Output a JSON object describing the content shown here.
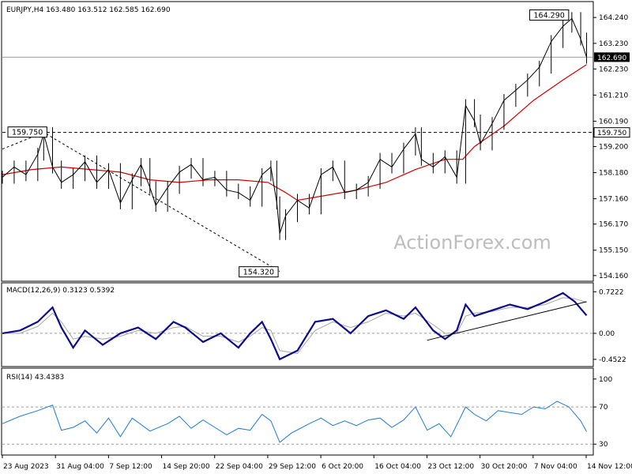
{
  "chart_data": {
    "type": "line",
    "symbol_header": "EURJPY,H4  163.480 163.512 162.585 162.690",
    "watermark": "ActionForex.com",
    "x_labels": [
      "23 Aug 2023",
      "31 Aug 04:00",
      "7 Sep 12:00",
      "14 Sep 20:00",
      "22 Sep 04:00",
      "29 Sep 12:00",
      "6 Oct 20:00",
      "16 Oct 04:00",
      "23 Oct 12:00",
      "30 Oct 20:00",
      "7 Nov 04:00",
      "14 Nov 12:00"
    ],
    "price_panel": {
      "ylim": [
        154.0,
        164.8
      ],
      "ticks": [
        "164.240",
        "163.230",
        "162.230",
        "161.210",
        "160.190",
        "159.200",
        "158.180",
        "157.160",
        "156.170",
        "155.150",
        "154.160"
      ],
      "current_price": "162.690",
      "current_value": 162.69,
      "level_value": 159.75,
      "level_tag": "159.750",
      "callouts": [
        {
          "text": "159.750",
          "x": 0.07,
          "y": 159.75
        },
        {
          "text": "154.320",
          "x": 0.47,
          "y": 154.32
        },
        {
          "text": "164.290",
          "x": 0.965,
          "y": 164.29
        }
      ],
      "price_series": [
        [
          0,
          158.0
        ],
        [
          0.02,
          158.4
        ],
        [
          0.04,
          158.1
        ],
        [
          0.06,
          158.9
        ],
        [
          0.07,
          159.7
        ],
        [
          0.085,
          158.4
        ],
        [
          0.1,
          157.8
        ],
        [
          0.12,
          158.1
        ],
        [
          0.14,
          158.6
        ],
        [
          0.16,
          157.8
        ],
        [
          0.18,
          158.3
        ],
        [
          0.2,
          157.0
        ],
        [
          0.22,
          157.9
        ],
        [
          0.235,
          158.5
        ],
        [
          0.25,
          157.6
        ],
        [
          0.26,
          156.9
        ],
        [
          0.28,
          157.6
        ],
        [
          0.3,
          158.2
        ],
        [
          0.32,
          158.5
        ],
        [
          0.34,
          157.9
        ],
        [
          0.36,
          158.0
        ],
        [
          0.38,
          157.5
        ],
        [
          0.4,
          157.4
        ],
        [
          0.42,
          157.1
        ],
        [
          0.44,
          158.1
        ],
        [
          0.455,
          158.4
        ],
        [
          0.465,
          157.0
        ],
        [
          0.47,
          155.8
        ],
        [
          0.48,
          156.5
        ],
        [
          0.5,
          157.1
        ],
        [
          0.52,
          156.8
        ],
        [
          0.54,
          158.1
        ],
        [
          0.56,
          158.4
        ],
        [
          0.58,
          157.4
        ],
        [
          0.6,
          157.5
        ],
        [
          0.62,
          157.8
        ],
        [
          0.64,
          158.7
        ],
        [
          0.66,
          158.4
        ],
        [
          0.68,
          159.1
        ],
        [
          0.7,
          159.7
        ],
        [
          0.71,
          158.7
        ],
        [
          0.73,
          158.4
        ],
        [
          0.75,
          158.8
        ],
        [
          0.77,
          158.0
        ],
        [
          0.785,
          160.8
        ],
        [
          0.8,
          160.2
        ],
        [
          0.81,
          159.3
        ],
        [
          0.83,
          160.1
        ],
        [
          0.85,
          161.0
        ],
        [
          0.87,
          161.4
        ],
        [
          0.89,
          161.8
        ],
        [
          0.91,
          162.3
        ],
        [
          0.93,
          163.3
        ],
        [
          0.95,
          163.9
        ],
        [
          0.965,
          164.2
        ],
        [
          0.98,
          163.4
        ],
        [
          0.99,
          162.69
        ]
      ],
      "ma_series": [
        [
          0,
          158.1
        ],
        [
          0.05,
          158.3
        ],
        [
          0.1,
          158.4
        ],
        [
          0.15,
          158.3
        ],
        [
          0.2,
          158.2
        ],
        [
          0.25,
          157.9
        ],
        [
          0.3,
          157.8
        ],
        [
          0.35,
          157.9
        ],
        [
          0.4,
          157.9
        ],
        [
          0.45,
          157.8
        ],
        [
          0.48,
          157.4
        ],
        [
          0.5,
          157.1
        ],
        [
          0.55,
          157.3
        ],
        [
          0.6,
          157.5
        ],
        [
          0.65,
          157.8
        ],
        [
          0.7,
          158.3
        ],
        [
          0.75,
          158.7
        ],
        [
          0.78,
          158.7
        ],
        [
          0.8,
          159.2
        ],
        [
          0.85,
          160.0
        ],
        [
          0.9,
          161.0
        ],
        [
          0.95,
          161.8
        ],
        [
          0.99,
          162.4
        ]
      ],
      "trendline": [
        [
          0.0,
          159.1
        ],
        [
          0.07,
          159.75
        ],
        [
          0.47,
          154.32
        ]
      ]
    },
    "macd_panel": {
      "label": "MACD(12,26,9) 0.3123 0.5392",
      "ylim": [
        -0.55,
        0.85
      ],
      "ticks": [
        "0.7222",
        "0.00",
        "-0.4522"
      ],
      "tick_values": [
        0.7222,
        0.0,
        -0.4522
      ],
      "macd_series": [
        [
          0,
          0.0
        ],
        [
          0.03,
          0.05
        ],
        [
          0.06,
          0.2
        ],
        [
          0.085,
          0.45
        ],
        [
          0.1,
          0.1
        ],
        [
          0.12,
          -0.25
        ],
        [
          0.14,
          0.05
        ],
        [
          0.17,
          -0.2
        ],
        [
          0.2,
          0.0
        ],
        [
          0.23,
          0.1
        ],
        [
          0.26,
          -0.1
        ],
        [
          0.29,
          0.2
        ],
        [
          0.31,
          0.1
        ],
        [
          0.34,
          -0.15
        ],
        [
          0.37,
          0.0
        ],
        [
          0.4,
          -0.25
        ],
        [
          0.42,
          0.0
        ],
        [
          0.44,
          0.2
        ],
        [
          0.455,
          -0.1
        ],
        [
          0.47,
          -0.45
        ],
        [
          0.5,
          -0.3
        ],
        [
          0.53,
          0.2
        ],
        [
          0.56,
          0.25
        ],
        [
          0.59,
          0.0
        ],
        [
          0.62,
          0.3
        ],
        [
          0.65,
          0.4
        ],
        [
          0.68,
          0.25
        ],
        [
          0.7,
          0.45
        ],
        [
          0.73,
          0.05
        ],
        [
          0.75,
          -0.1
        ],
        [
          0.77,
          0.05
        ],
        [
          0.785,
          0.5
        ],
        [
          0.8,
          0.3
        ],
        [
          0.83,
          0.4
        ],
        [
          0.86,
          0.5
        ],
        [
          0.89,
          0.42
        ],
        [
          0.92,
          0.55
        ],
        [
          0.95,
          0.7
        ],
        [
          0.97,
          0.55
        ],
        [
          0.99,
          0.31
        ]
      ],
      "signal_series": [
        [
          0,
          0.0
        ],
        [
          0.03,
          0.0
        ],
        [
          0.06,
          0.12
        ],
        [
          0.085,
          0.35
        ],
        [
          0.1,
          0.2
        ],
        [
          0.12,
          -0.1
        ],
        [
          0.14,
          -0.05
        ],
        [
          0.17,
          -0.1
        ],
        [
          0.2,
          -0.05
        ],
        [
          0.23,
          0.05
        ],
        [
          0.26,
          0.0
        ],
        [
          0.29,
          0.1
        ],
        [
          0.31,
          0.12
        ],
        [
          0.34,
          -0.05
        ],
        [
          0.37,
          -0.05
        ],
        [
          0.4,
          -0.15
        ],
        [
          0.42,
          -0.05
        ],
        [
          0.44,
          0.1
        ],
        [
          0.455,
          0.05
        ],
        [
          0.47,
          -0.3
        ],
        [
          0.5,
          -0.35
        ],
        [
          0.53,
          0.05
        ],
        [
          0.56,
          0.2
        ],
        [
          0.59,
          0.1
        ],
        [
          0.62,
          0.2
        ],
        [
          0.65,
          0.35
        ],
        [
          0.68,
          0.3
        ],
        [
          0.7,
          0.35
        ],
        [
          0.73,
          0.15
        ],
        [
          0.75,
          0.0
        ],
        [
          0.77,
          0.0
        ],
        [
          0.785,
          0.3
        ],
        [
          0.8,
          0.35
        ],
        [
          0.83,
          0.38
        ],
        [
          0.86,
          0.45
        ],
        [
          0.89,
          0.45
        ],
        [
          0.92,
          0.5
        ],
        [
          0.95,
          0.62
        ],
        [
          0.97,
          0.6
        ],
        [
          0.99,
          0.54
        ]
      ],
      "trendline": [
        [
          0.72,
          -0.12
        ],
        [
          0.99,
          0.55
        ]
      ]
    },
    "rsi_panel": {
      "label": "RSI(14) 43.4383",
      "ylim": [
        20,
        110
      ],
      "ticks": [
        "100",
        "70",
        "30"
      ],
      "tick_values": [
        100,
        70,
        30
      ],
      "rsi_series": [
        [
          0,
          52
        ],
        [
          0.03,
          60
        ],
        [
          0.06,
          66
        ],
        [
          0.085,
          72
        ],
        [
          0.1,
          45
        ],
        [
          0.12,
          48
        ],
        [
          0.14,
          55
        ],
        [
          0.16,
          42
        ],
        [
          0.18,
          58
        ],
        [
          0.2,
          38
        ],
        [
          0.22,
          58
        ],
        [
          0.25,
          44
        ],
        [
          0.28,
          52
        ],
        [
          0.3,
          60
        ],
        [
          0.32,
          47
        ],
        [
          0.34,
          56
        ],
        [
          0.36,
          48
        ],
        [
          0.38,
          40
        ],
        [
          0.4,
          47
        ],
        [
          0.42,
          45
        ],
        [
          0.44,
          62
        ],
        [
          0.455,
          55
        ],
        [
          0.47,
          32
        ],
        [
          0.49,
          42
        ],
        [
          0.52,
          52
        ],
        [
          0.54,
          58
        ],
        [
          0.56,
          50
        ],
        [
          0.58,
          55
        ],
        [
          0.6,
          50
        ],
        [
          0.62,
          56
        ],
        [
          0.64,
          58
        ],
        [
          0.66,
          48
        ],
        [
          0.68,
          56
        ],
        [
          0.7,
          70
        ],
        [
          0.72,
          45
        ],
        [
          0.74,
          52
        ],
        [
          0.76,
          38
        ],
        [
          0.785,
          70
        ],
        [
          0.8,
          62
        ],
        [
          0.82,
          55
        ],
        [
          0.84,
          66
        ],
        [
          0.86,
          64
        ],
        [
          0.88,
          62
        ],
        [
          0.9,
          70
        ],
        [
          0.92,
          68
        ],
        [
          0.94,
          76
        ],
        [
          0.96,
          70
        ],
        [
          0.98,
          55
        ],
        [
          0.99,
          43.4
        ]
      ]
    }
  }
}
